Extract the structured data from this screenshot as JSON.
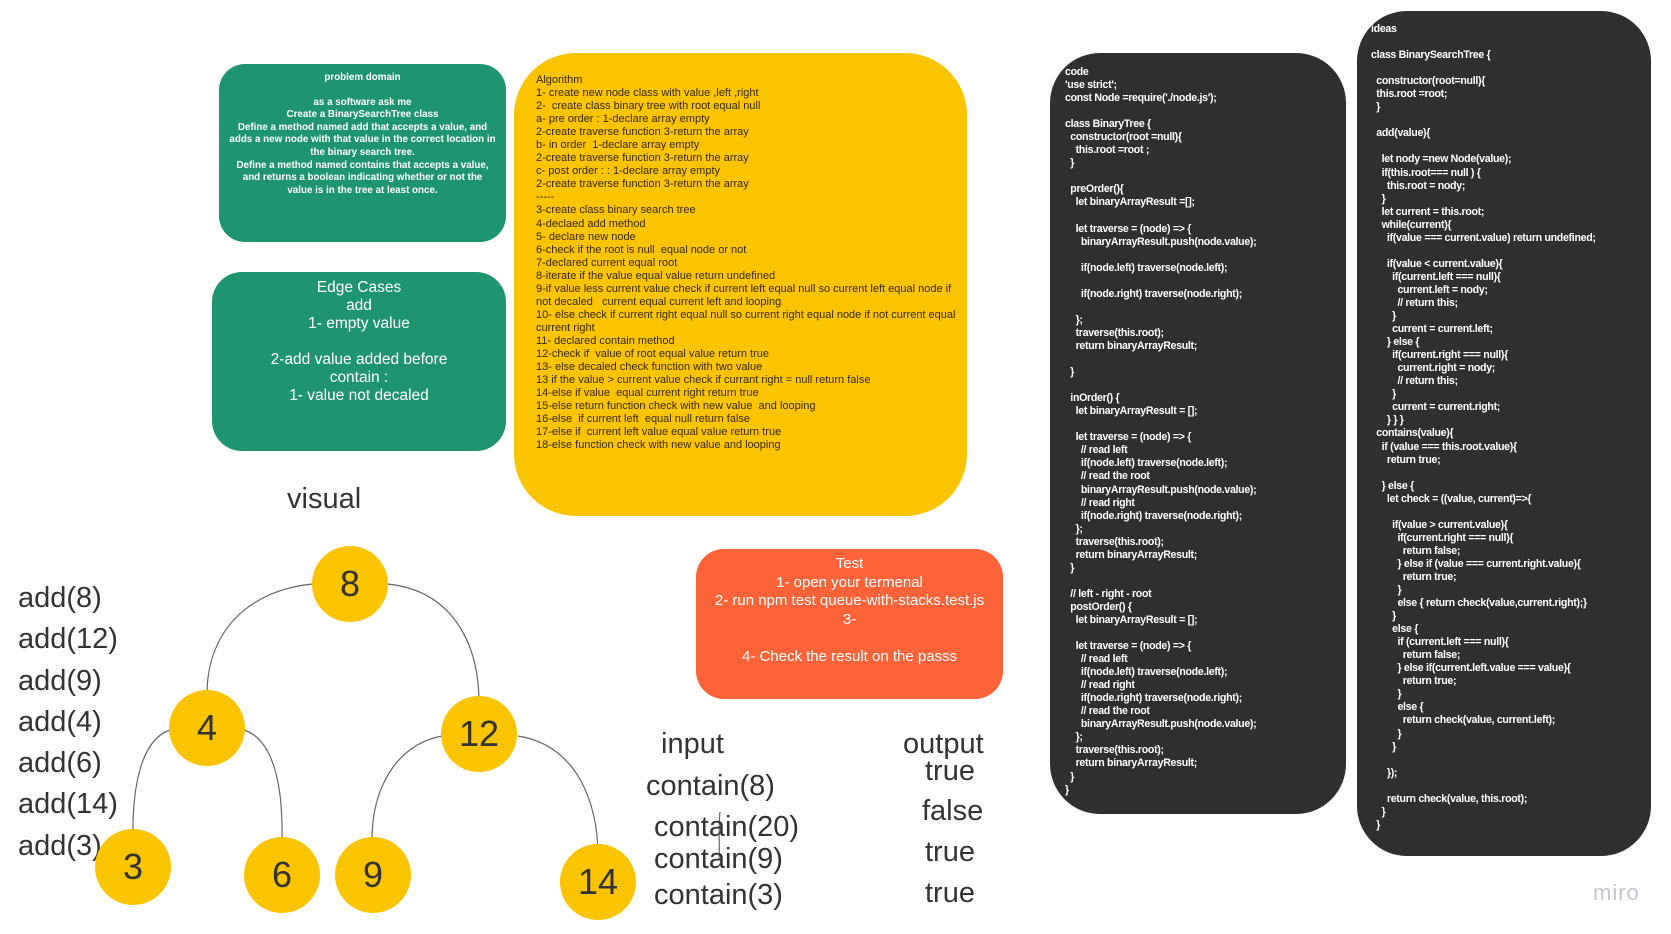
{
  "problem_domain": {
    "title": "problem domain",
    "body": "as a software ask me\nCreate a BinarySearchTree class\nDefine a method named add that accepts a value, and adds a new node with that value in the correct location in the binary search tree.\nDefine a method named contains that accepts a value, and returns a boolean indicating whether or not the value is in the tree at least once."
  },
  "edge_cases": {
    "text": "Edge Cases\nadd\n1- empty value\n\n2-add value added before\ncontain :\n1- value not decaled"
  },
  "algorithm": {
    "text": "Algorithm\n1- create new node class with value ,left ,right\n2-  create class binary tree with root equal null\na- pre order : 1-declare array empty\n2-create traverse function 3-return the array\nb- in order  1-declare array empty\n2-create traverse function 3-return the array\nc- post order : : 1-declare array empty\n2-create traverse function 3-return the array\n-----\n3-create class binary search tree\n4-declaed add method\n5- declare new node\n6-check if the root is null  equal node or not\n7-declared current equal root\n8-iterate if the value equal value return undefined\n9-if value less current value check if current left equal null so current left equal node if not decaled   current equal current left and looping\n10- else check if current right equal null so current right equal node if not current equal current right\n11- declared contain method\n12-check if  value of root equal value return true\n13- else decaled check function with two value\n13 if the value > current value check if currant right = null return false\n14-else if value  equal current right return true\n15-else return function check with new value  and looping\n16-else  if current left  equal null return false\n17-else if  current left value equal value return true\n18-else function check with new value and looping"
  },
  "test": {
    "text": "Test\n1- open your termenal\n2- run npm test queue-with-stacks.test.js\n3-\n\n4- Check the result on the passs"
  },
  "code": {
    "text": "code\n'use strict';\nconst Node =require('./node.js');\n\nclass BinaryTree {\n  constructor(root =null){\n    this.root =root ;\n  }\n\n  preOrder(){\n    let binaryArrayResult =[];\n\n    let traverse = (node) => {\n      binaryArrayResult.push(node.value);\n\n      if(node.left) traverse(node.left);\n\n      if(node.right) traverse(node.right);\n\n    };\n    traverse(this.root);\n    return binaryArrayResult;\n\n  }\n\n  inOrder() {\n    let binaryArrayResult = [];\n\n    let traverse = (node) => {\n      // read left\n      if(node.left) traverse(node.left);\n      // read the root\n      binaryArrayResult.push(node.value);\n      // read right\n      if(node.right) traverse(node.right);\n    };\n    traverse(this.root);\n    return binaryArrayResult;\n  }\n\n  // left - right - root\n  postOrder() {\n    let binaryArrayResult = [];\n\n    let traverse = (node) => {\n      // read left\n      if(node.left) traverse(node.left);\n      // read right\n      if(node.right) traverse(node.right);\n      // read the root\n      binaryArrayResult.push(node.value);\n    };\n    traverse(this.root);\n    return binaryArrayResult;\n  }\n}"
  },
  "ideas": {
    "text": "ideas\n\nclass BinarySearchTree {\n\n  constructor(root=null){\n  this.root =root;\n  }\n\n  add(value){\n\n    let nody =new Node(value);\n    if(this.root=== null ) {\n      this.root = nody;\n    }\n    let current = this.root;\n    while(current){\n      if(value === current.value) return undefined;\n\n      if(value < current.value){\n        if(current.left === null){\n          current.left = nody;\n          // return this;\n        }\n        current = current.left;\n      } else {\n        if(current.right === null){\n          current.right = nody;\n          // return this;\n        }\n        current = current.right;\n      } } }\n  contains(value){\n    if (value === this.root.value){\n      return true;\n\n    } else {\n      let check = ((value, current)=>{\n\n        if(value > current.value){\n          if(current.right === null){\n            return false;\n          } else if (value === current.right.value){\n            return true;\n          }\n          else { return check(value,current.right);}\n        }\n        else {\n          if (current.left === null){\n            return false;\n          } else if(current.left.value === value){\n            return true;\n          }\n          else {\n            return check(value, current.left);\n          }\n        }\n\n      });\n\n      return check(value, this.root);\n    }\n  }"
  },
  "visual": {
    "title": "visual",
    "adds": [
      "add(8)",
      "add(12)",
      "add(9)",
      "add(4)",
      "add(6)",
      "add(14)",
      "add(3)"
    ],
    "nodes": [
      "8",
      "4",
      "12",
      "3",
      "6",
      "9",
      "14"
    ]
  },
  "io": {
    "input_label": "input",
    "inputs": [
      "contain(8)",
      "contain(20)",
      "contain(9)",
      "contain(3)"
    ],
    "output_label": "output",
    "outputs": [
      "true",
      "false",
      "true",
      "true"
    ]
  },
  "watermark": "miro",
  "colors": {
    "green": "#1f9470",
    "yellow": "#fac400",
    "orange": "#fc6338",
    "dark": "#2f2f2f"
  }
}
